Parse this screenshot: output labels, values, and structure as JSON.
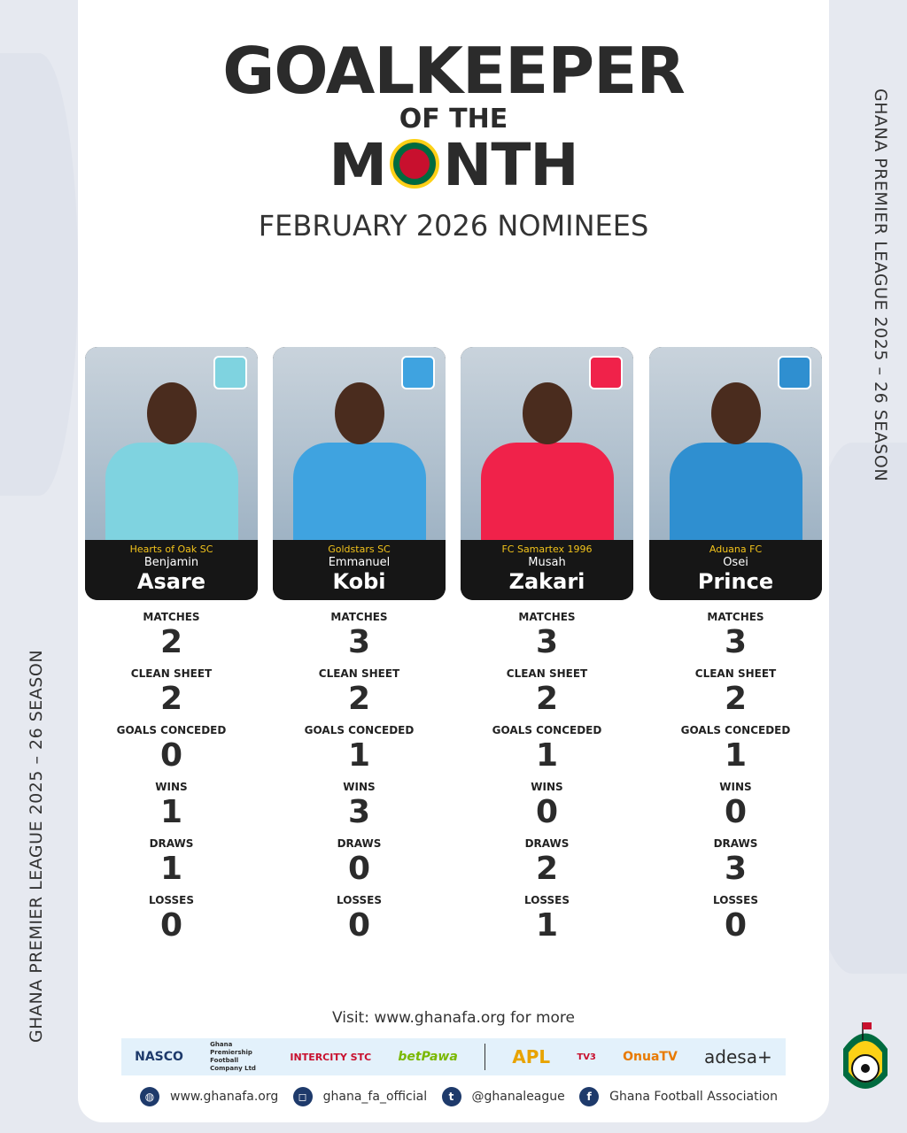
{
  "title": {
    "line1": "GOALKEEPER",
    "line2": "OF THE",
    "line3a": "M",
    "line3b": "NTH",
    "subtitle": "FEBRUARY 2026 NOMINEES"
  },
  "side_text": "GHANA PREMIER LEAGUE 2025 – 26 SEASON",
  "stat_labels": [
    "MATCHES",
    "CLEAN SHEET",
    "GOALS CONCEDED",
    "WINS",
    "DRAWS",
    "LOSSES"
  ],
  "nominees": [
    {
      "club": "Hearts of Oak SC",
      "first": "Benjamin",
      "last": "Asare",
      "stats": [
        "2",
        "2",
        "0",
        "1",
        "1",
        "0"
      ],
      "kit": "#7fd3e0"
    },
    {
      "club": "Goldstars SC",
      "first": "Emmanuel",
      "last": "Kobi",
      "stats": [
        "3",
        "2",
        "1",
        "3",
        "0",
        "0"
      ],
      "kit": "#3fa3e0"
    },
    {
      "club": "FC Samartex 1996",
      "first": "Musah",
      "last": "Zakari",
      "stats": [
        "3",
        "2",
        "1",
        "0",
        "2",
        "1"
      ],
      "kit": "#f0224a"
    },
    {
      "club": "Aduana FC",
      "first": "Osei",
      "last": "Prince",
      "stats": [
        "3",
        "2",
        "1",
        "0",
        "3",
        "0"
      ],
      "kit": "#2f8fd0"
    }
  ],
  "footer": {
    "visit": "Visit: www.ghanafa.org for more",
    "sponsors": [
      "NASCO",
      "Ghana Premiership Football Company Ltd",
      "INTERCITY STC",
      "betPawa",
      "APL",
      "TV3",
      "OnuaTV",
      "adesa+"
    ],
    "social": [
      {
        "icon": "globe-icon",
        "label": "www.ghanafa.org"
      },
      {
        "icon": "instagram-icon",
        "label": "ghana_fa_official"
      },
      {
        "icon": "twitter-icon",
        "label": "@ghanaleague"
      },
      {
        "icon": "facebook-icon",
        "label": "Ghana Football Association"
      }
    ]
  }
}
